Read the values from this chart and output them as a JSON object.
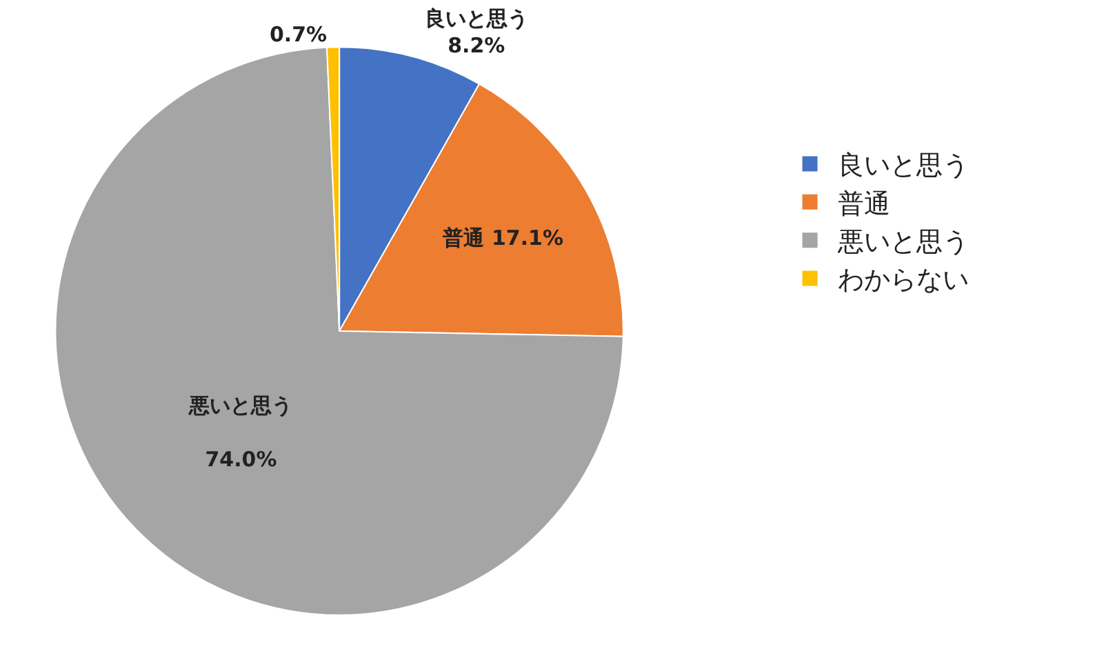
{
  "chart_data": {
    "type": "pie",
    "categories": [
      "良いと思う",
      "普通",
      "悪いと思う",
      "わからない"
    ],
    "values": [
      8.2,
      17.1,
      74.0,
      0.7
    ],
    "colors": [
      "#4472c4",
      "#ed7d31",
      "#a5a5a5",
      "#ffc000"
    ],
    "value_labels": [
      "良いと思う\n8.2%",
      "普通 17.1%",
      "悪いと思う\n\n74.0%",
      "0.7%"
    ],
    "legend": "right"
  }
}
